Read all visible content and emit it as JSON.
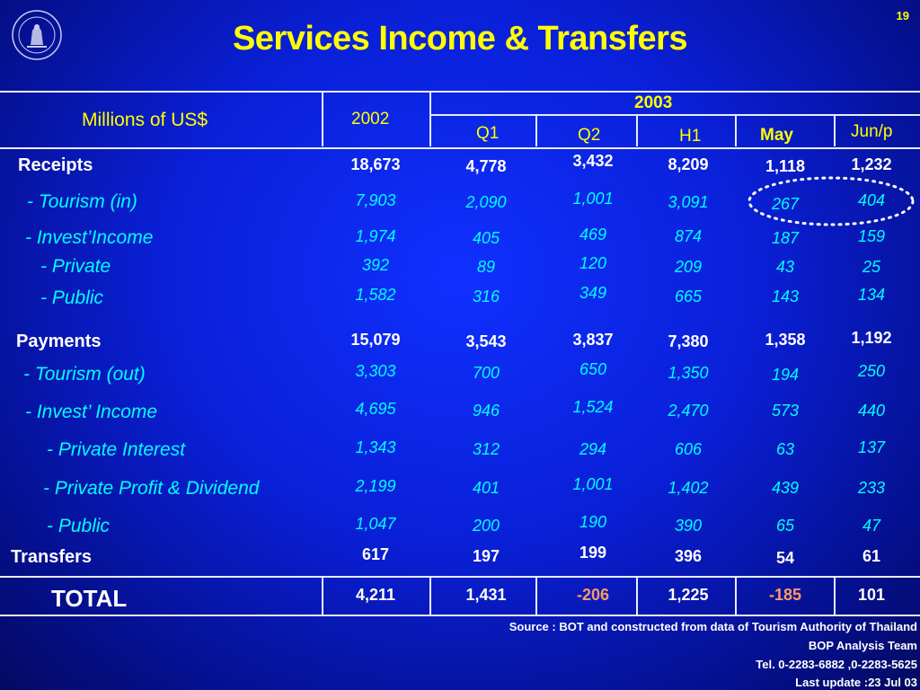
{
  "page_number": "19",
  "title": "Services Income & Transfers",
  "header": {
    "unit": "Millions of US$",
    "year_2002": "2002",
    "year_2003": "2003",
    "q1": "Q1",
    "q2": "Q2",
    "h1": "H1",
    "may": "May",
    "jun": "Jun/p"
  },
  "rows": {
    "receipts": {
      "label": "Receipts",
      "values": [
        "18,673",
        "4,778",
        "3,432",
        "8,209",
        "1,118",
        "1,232"
      ]
    },
    "tourism_in": {
      "label": "- Tourism (in)",
      "values": [
        "7,903",
        "2,090",
        "1,001",
        "3,091",
        "267",
        "404"
      ]
    },
    "invest_income": {
      "label": "- Invest’Income",
      "values": [
        "1,974",
        "405",
        "469",
        "874",
        "187",
        "159"
      ]
    },
    "private": {
      "label": "- Private",
      "values": [
        "392",
        "89",
        "120",
        "209",
        "43",
        "25"
      ]
    },
    "public": {
      "label": "- Public",
      "values": [
        "1,582",
        "316",
        "349",
        "665",
        "143",
        "134"
      ]
    },
    "payments": {
      "label": "Payments",
      "values": [
        "15,079",
        "3,543",
        "3,837",
        "7,380",
        "1,358",
        "1,192"
      ]
    },
    "tourism_out": {
      "label": "- Tourism (out)",
      "values": [
        "3,303",
        "700",
        "650",
        "1,350",
        "194",
        "250"
      ]
    },
    "invest_income_pay": {
      "label": "- Invest’ Income",
      "values": [
        "4,695",
        "946",
        "1,524",
        "2,470",
        "573",
        "440"
      ]
    },
    "private_interest": {
      "label": "- Private Interest",
      "values": [
        "1,343",
        "312",
        "294",
        "606",
        "63",
        "137"
      ]
    },
    "private_profit": {
      "label": "- Private Profit & Dividend",
      "values": [
        "2,199",
        "401",
        "1,001",
        "1,402",
        "439",
        "233"
      ]
    },
    "public_pay": {
      "label": "- Public",
      "values": [
        "1,047",
        "200",
        "190",
        "390",
        "65",
        "47"
      ]
    },
    "transfers": {
      "label": "Transfers",
      "values": [
        "617",
        "197",
        "199",
        "396",
        "54",
        "61"
      ]
    },
    "total": {
      "label": "TOTAL",
      "values": [
        "4,211",
        "1,431",
        "-206",
        "1,225",
        "-185",
        "101"
      ]
    }
  },
  "source": {
    "line1": "Source : BOT and constructed from data of Tourism Authority of Thailand",
    "line2": "BOP Analysis Team",
    "line3": "Tel. 0-2283-6882 ,0-2283-5625",
    "line4": "Last update :23 Jul  03"
  },
  "colors": {
    "title": "#ffff00",
    "bold_values": "#ffffff",
    "italic_values": "#00ffff",
    "negative_values": "#ff9966",
    "highlight_circle": "#ffffff"
  }
}
